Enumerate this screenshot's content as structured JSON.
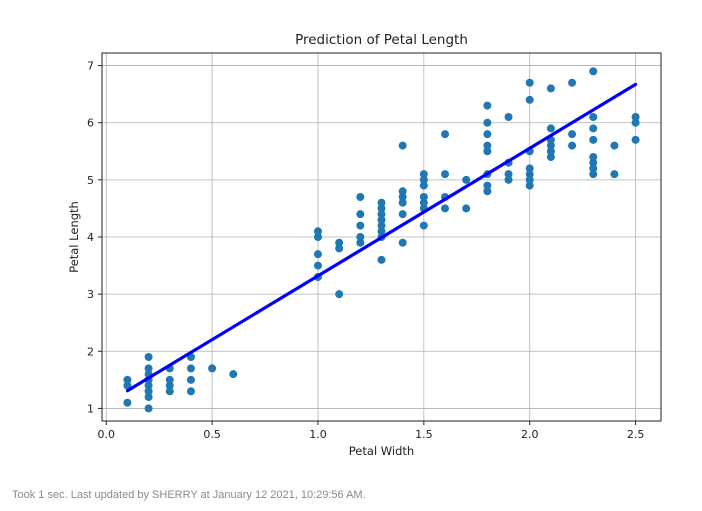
{
  "chart_data": {
    "type": "scatter",
    "title": "Prediction of Petal Length",
    "xlabel": "Petal Width",
    "ylabel": "Petal Length",
    "xlim": [
      -0.02,
      2.62
    ],
    "ylim": [
      0.78,
      7.22
    ],
    "xticks": [
      0.0,
      0.5,
      1.0,
      1.5,
      2.0,
      2.5
    ],
    "xtick_labels": [
      "0.0",
      "0.5",
      "1.0",
      "1.5",
      "2.0",
      "2.5"
    ],
    "yticks": [
      1,
      2,
      3,
      4,
      5,
      6,
      7
    ],
    "ytick_labels": [
      "1",
      "2",
      "3",
      "4",
      "5",
      "6",
      "7"
    ],
    "grid": true,
    "series": [
      {
        "type": "scatter",
        "color": "#1f77b4",
        "points": [
          [
            0.1,
            1.1
          ],
          [
            0.1,
            1.4
          ],
          [
            0.1,
            1.5
          ],
          [
            0.2,
            1.0
          ],
          [
            0.2,
            1.2
          ],
          [
            0.2,
            1.3
          ],
          [
            0.2,
            1.4
          ],
          [
            0.2,
            1.5
          ],
          [
            0.2,
            1.6
          ],
          [
            0.2,
            1.7
          ],
          [
            0.2,
            1.9
          ],
          [
            0.3,
            1.3
          ],
          [
            0.3,
            1.4
          ],
          [
            0.3,
            1.5
          ],
          [
            0.3,
            1.7
          ],
          [
            0.4,
            1.3
          ],
          [
            0.4,
            1.5
          ],
          [
            0.4,
            1.7
          ],
          [
            0.4,
            1.9
          ],
          [
            0.5,
            1.7
          ],
          [
            0.6,
            1.6
          ],
          [
            1.0,
            3.3
          ],
          [
            1.0,
            3.5
          ],
          [
            1.0,
            3.7
          ],
          [
            1.0,
            4.0
          ],
          [
            1.0,
            4.1
          ],
          [
            1.1,
            3.0
          ],
          [
            1.1,
            3.8
          ],
          [
            1.1,
            3.9
          ],
          [
            1.2,
            3.9
          ],
          [
            1.2,
            4.0
          ],
          [
            1.2,
            4.2
          ],
          [
            1.2,
            4.4
          ],
          [
            1.2,
            4.7
          ],
          [
            1.3,
            3.6
          ],
          [
            1.3,
            4.0
          ],
          [
            1.3,
            4.1
          ],
          [
            1.3,
            4.2
          ],
          [
            1.3,
            4.3
          ],
          [
            1.3,
            4.4
          ],
          [
            1.3,
            4.5
          ],
          [
            1.3,
            4.6
          ],
          [
            1.4,
            3.9
          ],
          [
            1.4,
            4.4
          ],
          [
            1.4,
            4.6
          ],
          [
            1.4,
            4.7
          ],
          [
            1.4,
            4.8
          ],
          [
            1.4,
            5.6
          ],
          [
            1.5,
            4.2
          ],
          [
            1.5,
            4.5
          ],
          [
            1.5,
            4.6
          ],
          [
            1.5,
            4.7
          ],
          [
            1.5,
            4.9
          ],
          [
            1.5,
            5.0
          ],
          [
            1.5,
            5.1
          ],
          [
            1.6,
            4.5
          ],
          [
            1.6,
            4.7
          ],
          [
            1.6,
            5.1
          ],
          [
            1.6,
            5.8
          ],
          [
            1.7,
            4.5
          ],
          [
            1.7,
            5.0
          ],
          [
            1.8,
            4.8
          ],
          [
            1.8,
            4.9
          ],
          [
            1.8,
            5.1
          ],
          [
            1.8,
            5.5
          ],
          [
            1.8,
            5.6
          ],
          [
            1.8,
            5.8
          ],
          [
            1.8,
            6.0
          ],
          [
            1.8,
            6.3
          ],
          [
            1.9,
            5.0
          ],
          [
            1.9,
            5.1
          ],
          [
            1.9,
            5.3
          ],
          [
            1.9,
            6.1
          ],
          [
            2.0,
            4.9
          ],
          [
            2.0,
            5.0
          ],
          [
            2.0,
            5.1
          ],
          [
            2.0,
            5.2
          ],
          [
            2.0,
            5.5
          ],
          [
            2.0,
            6.4
          ],
          [
            2.0,
            6.7
          ],
          [
            2.1,
            5.4
          ],
          [
            2.1,
            5.5
          ],
          [
            2.1,
            5.6
          ],
          [
            2.1,
            5.7
          ],
          [
            2.1,
            5.9
          ],
          [
            2.1,
            6.6
          ],
          [
            2.2,
            5.6
          ],
          [
            2.2,
            5.8
          ],
          [
            2.2,
            6.7
          ],
          [
            2.3,
            5.1
          ],
          [
            2.3,
            5.2
          ],
          [
            2.3,
            5.3
          ],
          [
            2.3,
            5.4
          ],
          [
            2.3,
            5.7
          ],
          [
            2.3,
            5.9
          ],
          [
            2.3,
            6.1
          ],
          [
            2.3,
            6.9
          ],
          [
            2.4,
            5.1
          ],
          [
            2.4,
            5.6
          ],
          [
            2.5,
            5.7
          ],
          [
            2.5,
            6.0
          ],
          [
            2.5,
            6.1
          ]
        ]
      },
      {
        "type": "line",
        "color": "#0000ff",
        "points": [
          [
            0.1,
            1.31
          ],
          [
            2.5,
            6.67
          ]
        ]
      }
    ]
  },
  "footer": {
    "text": "Took 1 sec. Last updated by SHERRY at January 12 2021, 10:29:56 AM."
  }
}
